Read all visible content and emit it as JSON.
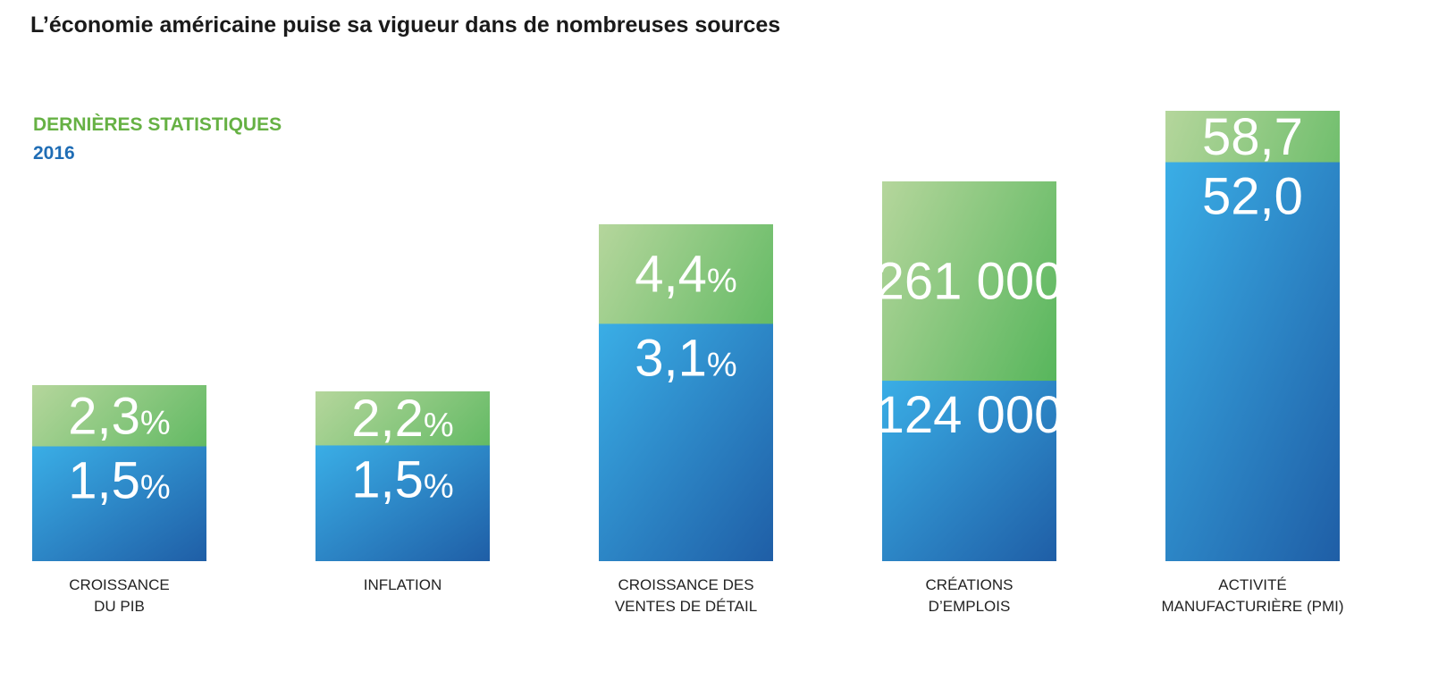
{
  "title": "L’économie américaine puise sa vigueur dans de nombreuses sources",
  "legend": [
    {
      "label": "DERNIÈRES STATISTIQUES",
      "color": "#66b144"
    },
    {
      "label": "2016",
      "color": "#1f6db5"
    }
  ],
  "chart_data": {
    "type": "bar",
    "subtype": "overlapping-bars (latest stacked visually above 2016)",
    "categories": [
      [
        "CROISSANCE",
        "DU PIB"
      ],
      [
        "INFLATION"
      ],
      [
        "CROISSANCE DES",
        "VENTES DE DÉTAIL"
      ],
      [
        "CRÉATIONS",
        "D’EMPLOIS"
      ],
      [
        "ACTIVITÉ",
        "MANUFACTURIÈRE (PMI)"
      ]
    ],
    "series": [
      {
        "name": "DERNIÈRES STATISTIQUES",
        "values": [
          2.3,
          2.2,
          4.4,
          261000,
          58.7
        ],
        "labels": [
          "2,3",
          "2,2",
          "4,4",
          "261 000",
          "58,7"
        ],
        "units": [
          "%",
          "%",
          "%",
          "",
          ""
        ]
      },
      {
        "name": "2016",
        "values": [
          1.5,
          1.5,
          3.1,
          124000,
          52.0
        ],
        "labels": [
          "1,5",
          "1,5",
          "3,1",
          "124 000",
          "52,0"
        ],
        "units": [
          "%",
          "%",
          "%",
          "",
          ""
        ]
      }
    ],
    "colors": {
      "green_light": "#b5d69c",
      "green_dark": "#3aac48",
      "blue_light": "#3aaee6",
      "blue_dark": "#1f5ea6"
    },
    "legend_position": "top-left",
    "grid": false
  }
}
